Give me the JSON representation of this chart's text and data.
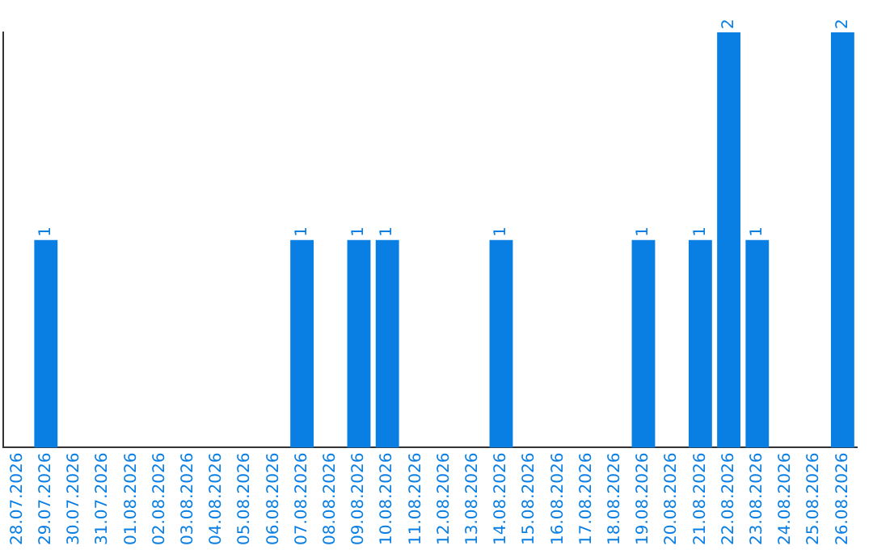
{
  "chart_data": {
    "type": "bar",
    "categories": [
      "28.07.2026",
      "29.07.2026",
      "30.07.2026",
      "31.07.2026",
      "01.08.2026",
      "02.08.2026",
      "03.08.2026",
      "04.08.2026",
      "05.08.2026",
      "06.08.2026",
      "07.08.2026",
      "08.08.2026",
      "09.08.2026",
      "10.08.2026",
      "11.08.2026",
      "12.08.2026",
      "13.08.2026",
      "14.08.2026",
      "15.08.2026",
      "16.08.2026",
      "17.08.2026",
      "18.08.2026",
      "19.08.2026",
      "20.08.2026",
      "21.08.2026",
      "22.08.2026",
      "23.08.2026",
      "24.08.2026",
      "25.08.2026",
      "26.08.2026"
    ],
    "values": [
      0,
      1,
      0,
      0,
      0,
      0,
      0,
      0,
      0,
      0,
      1,
      0,
      1,
      1,
      0,
      0,
      0,
      1,
      0,
      0,
      0,
      0,
      1,
      0,
      1,
      2,
      1,
      0,
      0,
      2
    ],
    "value_labels": [
      null,
      "1",
      null,
      null,
      null,
      null,
      null,
      null,
      null,
      null,
      "1",
      null,
      "1",
      "1",
      null,
      null,
      null,
      "1",
      null,
      null,
      null,
      null,
      "1",
      null,
      "1",
      "2",
      "1",
      null,
      null,
      "2"
    ],
    "color": "#0a7fe3",
    "ylim": [
      0,
      2
    ],
    "tick_labels": "x",
    "grid": false,
    "legend": false
  }
}
